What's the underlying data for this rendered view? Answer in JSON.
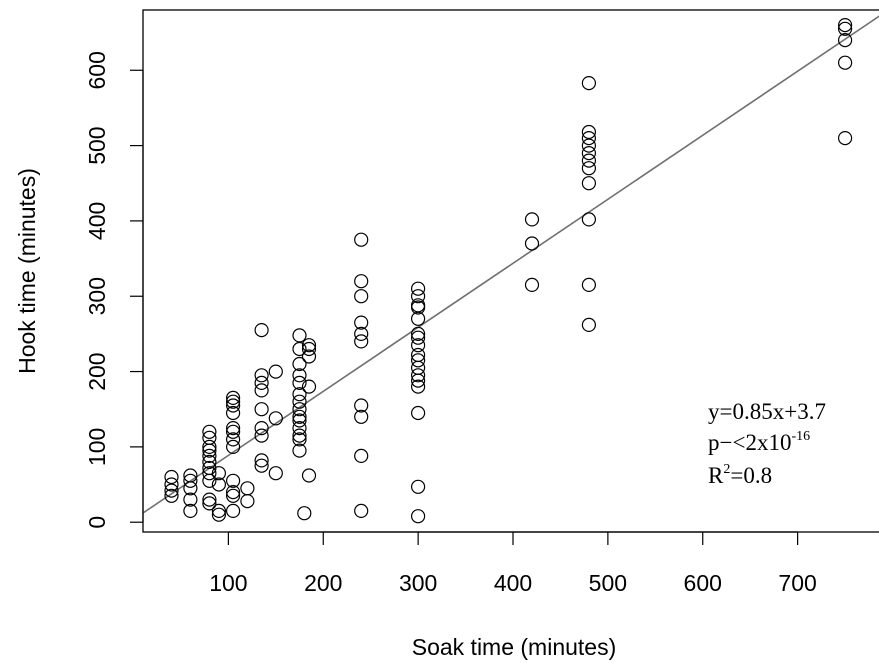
{
  "chart_data": {
    "type": "scatter",
    "title": "",
    "xlabel": "Soak time (minutes)",
    "ylabel": "Hook time (minutes)",
    "xlim": [
      10,
      790
    ],
    "ylim": [
      -13,
      680
    ],
    "x_ticks": [
      100,
      200,
      300,
      400,
      500,
      600,
      700
    ],
    "y_ticks": [
      0,
      100,
      200,
      300,
      400,
      500,
      600
    ],
    "grid": false,
    "marker": "open-circle",
    "colors": {
      "points": "#000000",
      "fit_line": "#707070"
    },
    "points": [
      [
        40,
        35
      ],
      [
        40,
        42
      ],
      [
        40,
        50
      ],
      [
        40,
        60
      ],
      [
        60,
        15
      ],
      [
        60,
        30
      ],
      [
        60,
        45
      ],
      [
        60,
        55
      ],
      [
        60,
        62
      ],
      [
        80,
        25
      ],
      [
        80,
        30
      ],
      [
        80,
        55
      ],
      [
        80,
        65
      ],
      [
        80,
        72
      ],
      [
        80,
        80
      ],
      [
        80,
        88
      ],
      [
        80,
        95
      ],
      [
        80,
        100
      ],
      [
        80,
        112
      ],
      [
        80,
        120
      ],
      [
        90,
        10
      ],
      [
        90,
        15
      ],
      [
        90,
        50
      ],
      [
        90,
        65
      ],
      [
        105,
        15
      ],
      [
        105,
        35
      ],
      [
        105,
        40
      ],
      [
        105,
        55
      ],
      [
        105,
        100
      ],
      [
        105,
        110
      ],
      [
        105,
        120
      ],
      [
        105,
        125
      ],
      [
        105,
        145
      ],
      [
        105,
        155
      ],
      [
        105,
        160
      ],
      [
        105,
        165
      ],
      [
        120,
        28
      ],
      [
        120,
        45
      ],
      [
        135,
        75
      ],
      [
        135,
        82
      ],
      [
        135,
        115
      ],
      [
        135,
        125
      ],
      [
        135,
        150
      ],
      [
        135,
        175
      ],
      [
        135,
        185
      ],
      [
        135,
        195
      ],
      [
        135,
        255
      ],
      [
        150,
        65
      ],
      [
        150,
        138
      ],
      [
        150,
        200
      ],
      [
        175,
        95
      ],
      [
        175,
        110
      ],
      [
        175,
        115
      ],
      [
        175,
        125
      ],
      [
        175,
        135
      ],
      [
        175,
        140
      ],
      [
        175,
        150
      ],
      [
        175,
        160
      ],
      [
        175,
        170
      ],
      [
        175,
        185
      ],
      [
        175,
        195
      ],
      [
        175,
        210
      ],
      [
        175,
        230
      ],
      [
        175,
        248
      ],
      [
        180,
        12
      ],
      [
        185,
        62
      ],
      [
        185,
        180
      ],
      [
        185,
        220
      ],
      [
        185,
        230
      ],
      [
        185,
        235
      ],
      [
        240,
        15
      ],
      [
        240,
        88
      ],
      [
        240,
        140
      ],
      [
        240,
        155
      ],
      [
        240,
        240
      ],
      [
        240,
        250
      ],
      [
        240,
        265
      ],
      [
        240,
        300
      ],
      [
        240,
        320
      ],
      [
        240,
        375
      ],
      [
        300,
        8
      ],
      [
        300,
        47
      ],
      [
        300,
        145
      ],
      [
        300,
        180
      ],
      [
        300,
        188
      ],
      [
        300,
        195
      ],
      [
        300,
        205
      ],
      [
        300,
        215
      ],
      [
        300,
        222
      ],
      [
        300,
        235
      ],
      [
        300,
        245
      ],
      [
        300,
        250
      ],
      [
        300,
        270
      ],
      [
        300,
        285
      ],
      [
        300,
        288
      ],
      [
        300,
        300
      ],
      [
        300,
        310
      ],
      [
        420,
        315
      ],
      [
        420,
        370
      ],
      [
        420,
        402
      ],
      [
        480,
        262
      ],
      [
        480,
        315
      ],
      [
        480,
        402
      ],
      [
        480,
        450
      ],
      [
        480,
        470
      ],
      [
        480,
        480
      ],
      [
        480,
        490
      ],
      [
        480,
        500
      ],
      [
        480,
        510
      ],
      [
        480,
        518
      ],
      [
        480,
        583
      ],
      [
        750,
        510
      ],
      [
        750,
        610
      ],
      [
        750,
        640
      ],
      [
        750,
        655
      ],
      [
        750,
        660
      ]
    ],
    "fit": {
      "slope": 0.85,
      "intercept": 3.7
    },
    "annotations": {
      "equation": "y=0.85x+3.7",
      "p_prefix": "p−<2x10",
      "p_exponent": "-16",
      "r2_prefix": "R",
      "r2_exponent": "2",
      "r2_suffix": "=0.8"
    }
  }
}
